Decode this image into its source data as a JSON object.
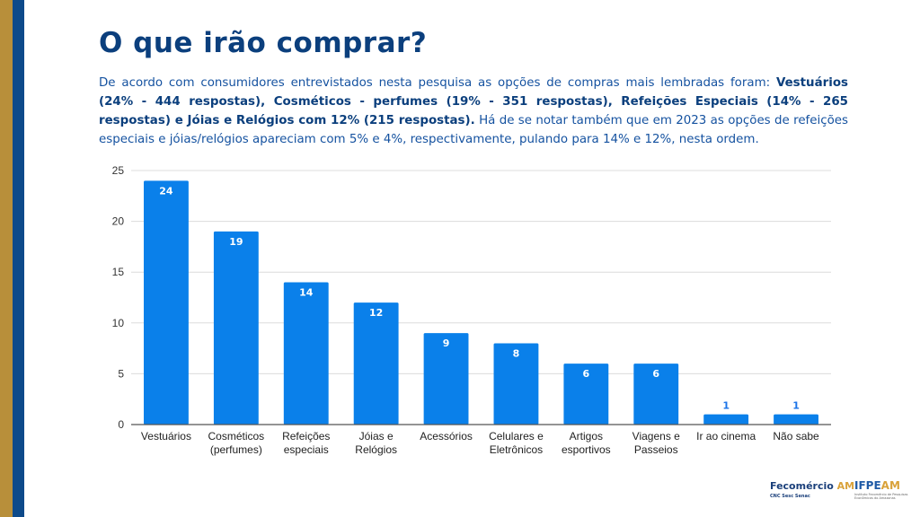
{
  "slide": {
    "title": "O que irão comprar?",
    "description": [
      {
        "text": "De acordo com consumidores entrevistados nesta pesquisa as opções de compras mais lembradas foram: ",
        "bold": false
      },
      {
        "text": "Vestuários (24% - 444 respostas), Cosméticos - perfumes (19% - 351 respostas), Refeições Especiais (14% - 265 respostas) e Jóias e Relógios com 12% (215 respostas).",
        "bold": true
      },
      {
        "text": " Há de se notar também que em 2023 as opções de refeições especiais e jóias/relógios apareciam com 5% e 4%, respectivamente, pulando para 14% e 12%, nesta ordem.",
        "bold": false
      }
    ],
    "colors": {
      "gold_stripe": "#b88f3a",
      "blue_stripe": "#0d4a8a",
      "title": "#0b3f7d",
      "bar": "#0a80ea"
    }
  },
  "logos": {
    "fecomercio": {
      "name": "Fecomércio",
      "suffix": "AM",
      "subtitle": "CNC Sesc Senac"
    },
    "ifpe": {
      "name": "IFPE",
      "suffix": "AM",
      "subtitle": "Instituto Fecomércio de Pesquisas Econômicas do Amazonas"
    }
  },
  "chart_data": {
    "type": "bar",
    "title": "",
    "xlabel": "",
    "ylabel": "",
    "categories": [
      [
        "Vestuários"
      ],
      [
        "Cosméticos",
        "(perfumes)"
      ],
      [
        "Refeições",
        "especiais"
      ],
      [
        "Jóias e",
        "Relógios"
      ],
      [
        "Acessórios"
      ],
      [
        "Celulares e",
        "Eletrônicos"
      ],
      [
        "Artigos",
        "esportivos"
      ],
      [
        "Viagens e",
        "Passeios"
      ],
      [
        "Ir ao cinema"
      ],
      [
        "Não sabe"
      ]
    ],
    "values": [
      24,
      19,
      14,
      12,
      9,
      8,
      6,
      6,
      1,
      1
    ],
    "ylim": [
      0,
      25
    ],
    "yticks": [
      0,
      5,
      10,
      15,
      20,
      25
    ],
    "grid": true,
    "legend": "none",
    "data_labels": true
  }
}
